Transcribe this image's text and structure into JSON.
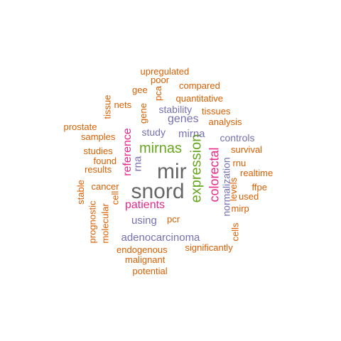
{
  "wordcloud": {
    "colors": {
      "orange": "#d95f02",
      "purple": "#7570b3",
      "magenta": "#e7298a",
      "green": "#66a61e",
      "gray": "#666666"
    },
    "words": [
      {
        "text": "mir",
        "color": "gray"
      },
      {
        "text": "snord",
        "color": "gray"
      },
      {
        "text": "expression",
        "color": "green"
      },
      {
        "text": "mirnas",
        "color": "green"
      },
      {
        "text": "colorectal",
        "color": "magenta"
      },
      {
        "text": "reference",
        "color": "magenta"
      },
      {
        "text": "patients",
        "color": "magenta"
      },
      {
        "text": "genes",
        "color": "purple"
      },
      {
        "text": "mirna",
        "color": "purple"
      },
      {
        "text": "rna",
        "color": "purple"
      },
      {
        "text": "adenocarcinoma",
        "color": "purple"
      },
      {
        "text": "using",
        "color": "purple"
      },
      {
        "text": "stability",
        "color": "purple"
      },
      {
        "text": "study",
        "color": "purple"
      },
      {
        "text": "controls",
        "color": "purple"
      },
      {
        "text": "normalization",
        "color": "purple"
      },
      {
        "text": "upregulated",
        "color": "orange"
      },
      {
        "text": "poor",
        "color": "orange"
      },
      {
        "text": "compared",
        "color": "orange"
      },
      {
        "text": "gee",
        "color": "orange"
      },
      {
        "text": "pca",
        "color": "orange"
      },
      {
        "text": "quantitative",
        "color": "orange"
      },
      {
        "text": "tissue",
        "color": "orange"
      },
      {
        "text": "nets",
        "color": "orange"
      },
      {
        "text": "gene",
        "color": "orange"
      },
      {
        "text": "tissues",
        "color": "orange"
      },
      {
        "text": "prostate",
        "color": "orange"
      },
      {
        "text": "analysis",
        "color": "orange"
      },
      {
        "text": "samples",
        "color": "orange"
      },
      {
        "text": "studies",
        "color": "orange"
      },
      {
        "text": "survival",
        "color": "orange"
      },
      {
        "text": "found",
        "color": "orange"
      },
      {
        "text": "results",
        "color": "orange"
      },
      {
        "text": "rnu",
        "color": "orange"
      },
      {
        "text": "realtime",
        "color": "orange"
      },
      {
        "text": "stable",
        "color": "orange"
      },
      {
        "text": "cancer",
        "color": "orange"
      },
      {
        "text": "levels",
        "color": "orange"
      },
      {
        "text": "ffpe",
        "color": "orange"
      },
      {
        "text": "cell",
        "color": "orange"
      },
      {
        "text": "used",
        "color": "orange"
      },
      {
        "text": "prognostic",
        "color": "orange"
      },
      {
        "text": "mirp",
        "color": "orange"
      },
      {
        "text": "molecular",
        "color": "orange"
      },
      {
        "text": "pcr",
        "color": "orange"
      },
      {
        "text": "cells",
        "color": "orange"
      },
      {
        "text": "endogenous",
        "color": "orange"
      },
      {
        "text": "significantly",
        "color": "orange"
      },
      {
        "text": "malignant",
        "color": "orange"
      },
      {
        "text": "potential",
        "color": "orange"
      }
    ]
  }
}
